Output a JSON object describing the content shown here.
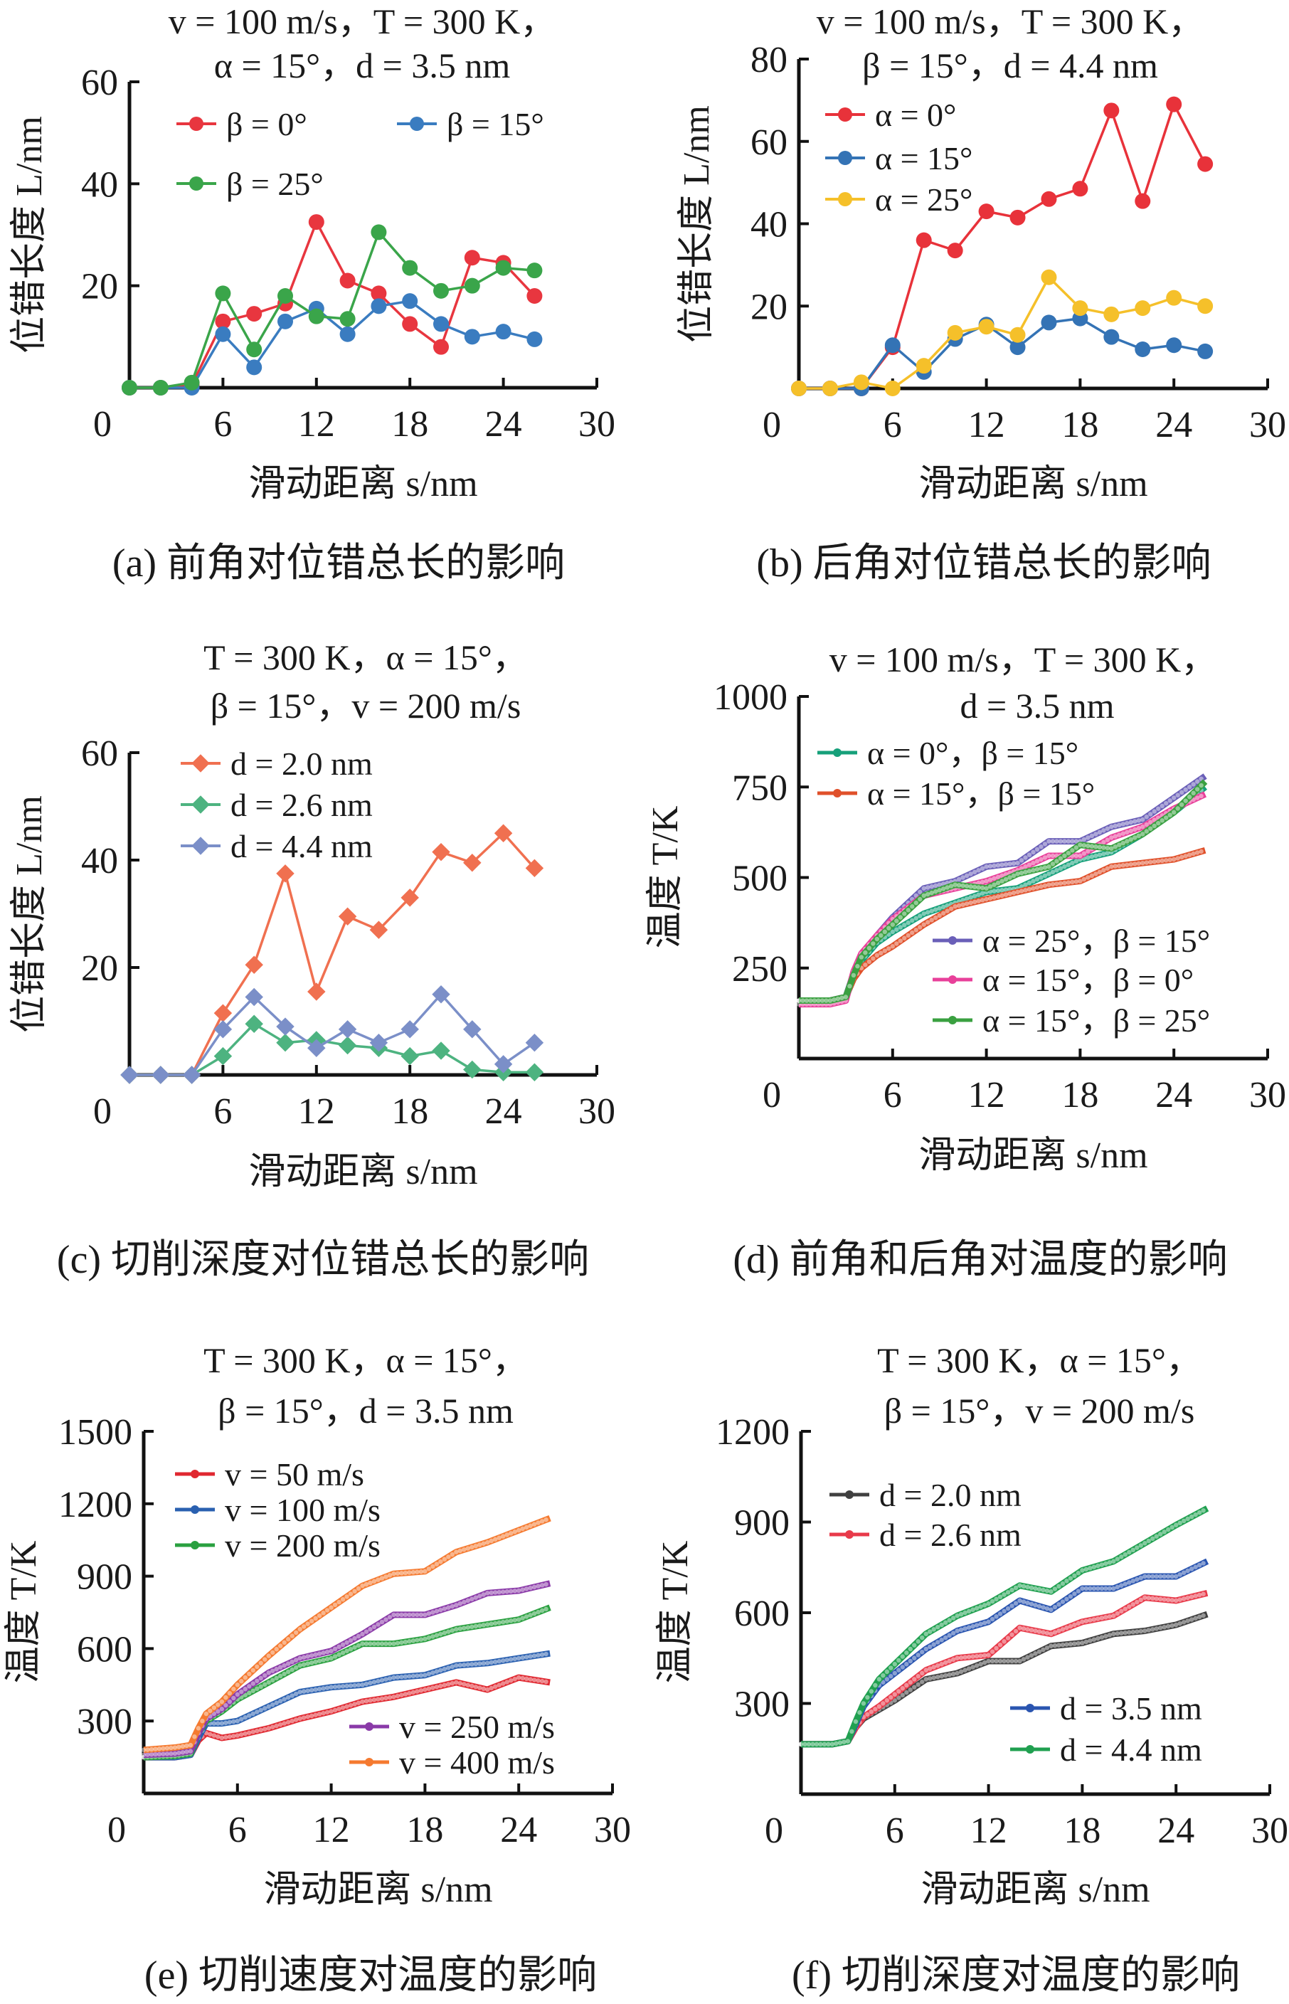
{
  "chart_data": [
    {
      "type": "line",
      "panel": "a",
      "title": [
        "v = 100 m/s，T = 300 K，",
        "α = 15°，d = 3.5 nm"
      ],
      "caption": "(a) 前角对位错总长的影响",
      "xlabel": "滑动距离 s/nm",
      "ylabel": "位错长度 L/nm",
      "xlim": [
        0,
        30
      ],
      "ylim": [
        0,
        60
      ],
      "xticks": [
        0,
        6,
        12,
        18,
        24,
        30
      ],
      "yticks": [
        20,
        40,
        60
      ],
      "series": [
        {
          "name": "β = 0°",
          "color": "#e8363f",
          "marker": "circle",
          "x": [
            0,
            2,
            4,
            6,
            8,
            10,
            12,
            14,
            16,
            18,
            20,
            22,
            24,
            26
          ],
          "y": [
            0,
            0,
            0.5,
            13,
            14.5,
            16.5,
            32.5,
            21,
            18.5,
            12.5,
            8,
            25.5,
            24.5,
            18
          ]
        },
        {
          "name": "β = 15°",
          "color": "#3a7cc0",
          "marker": "circle",
          "x": [
            0,
            2,
            4,
            6,
            8,
            10,
            12,
            14,
            16,
            18,
            20,
            22,
            24,
            26
          ],
          "y": [
            0,
            0,
            0,
            10.5,
            4,
            13,
            15.5,
            10.5,
            16,
            17,
            12.5,
            10,
            11,
            9.5
          ]
        },
        {
          "name": "β = 25°",
          "color": "#3aa54a",
          "marker": "circle",
          "x": [
            0,
            2,
            4,
            6,
            8,
            10,
            12,
            14,
            16,
            18,
            20,
            22,
            24,
            26
          ],
          "y": [
            0,
            0,
            1,
            18.5,
            7.5,
            18,
            14,
            13.5,
            30.5,
            23.5,
            19,
            20,
            23.5,
            23
          ]
        }
      ]
    },
    {
      "type": "line",
      "panel": "b",
      "title": [
        "v = 100 m/s，T = 300 K，",
        "β = 15°，d = 4.4 nm"
      ],
      "caption": "(b) 后角对位错总长的影响",
      "xlabel": "滑动距离 s/nm",
      "ylabel": "位错长度 L/nm",
      "xlim": [
        0,
        30
      ],
      "ylim": [
        0,
        80
      ],
      "xticks": [
        0,
        6,
        12,
        18,
        24,
        30
      ],
      "yticks": [
        20,
        40,
        60,
        80
      ],
      "series": [
        {
          "name": "α = 0°",
          "color": "#e8323a",
          "marker": "circle",
          "x": [
            0,
            2,
            4,
            6,
            8,
            10,
            12,
            14,
            16,
            18,
            20,
            22,
            24,
            26
          ],
          "y": [
            0,
            0,
            0,
            10,
            36,
            33.5,
            43,
            41.5,
            46,
            48.5,
            67.5,
            45.5,
            69,
            54.5
          ]
        },
        {
          "name": "α = 15°",
          "color": "#3473b5",
          "marker": "circle",
          "x": [
            0,
            2,
            4,
            6,
            8,
            10,
            12,
            14,
            16,
            18,
            20,
            22,
            24,
            26
          ],
          "y": [
            0,
            0,
            0,
            10.5,
            4,
            12,
            15.5,
            10,
            16,
            17,
            12.5,
            9.5,
            10.5,
            9
          ]
        },
        {
          "name": "α = 25°",
          "color": "#f5c02a",
          "marker": "circle",
          "x": [
            0,
            2,
            4,
            6,
            8,
            10,
            12,
            14,
            16,
            18,
            20,
            22,
            24,
            26
          ],
          "y": [
            0,
            0,
            1.5,
            0,
            5.5,
            13.5,
            15,
            13,
            27,
            19.5,
            18,
            19.5,
            22,
            20
          ]
        }
      ]
    },
    {
      "type": "line",
      "panel": "c",
      "title": [
        "T = 300 K，α = 15°，",
        "β = 15°，v = 200 m/s"
      ],
      "caption": "(c) 切削深度对位错总长的影响",
      "xlabel": "滑动距离 s/nm",
      "ylabel": "位错长度 L/nm",
      "xlim": [
        0,
        30
      ],
      "ylim": [
        0,
        60
      ],
      "xticks": [
        0,
        6,
        12,
        18,
        24,
        30
      ],
      "yticks": [
        20,
        40,
        60
      ],
      "series": [
        {
          "name": "d = 2.0 nm",
          "color": "#f07050",
          "marker": "diamond",
          "x": [
            0,
            2,
            4,
            6,
            8,
            10,
            12,
            14,
            16,
            18,
            20,
            22,
            24,
            26
          ],
          "y": [
            0,
            0,
            0,
            11.5,
            20.5,
            37.5,
            15.5,
            29.5,
            27,
            33,
            41.5,
            39.5,
            45,
            38.5
          ]
        },
        {
          "name": "d = 2.6 nm",
          "color": "#4db380",
          "marker": "diamond",
          "x": [
            0,
            2,
            4,
            6,
            8,
            10,
            12,
            14,
            16,
            18,
            20,
            22,
            24,
            26
          ],
          "y": [
            0,
            0,
            0,
            3.5,
            9.5,
            6,
            6.5,
            5.5,
            5,
            3.5,
            4.5,
            1,
            0.5,
            0.5
          ]
        },
        {
          "name": "d = 4.4 nm",
          "color": "#7b8fc8",
          "marker": "diamond",
          "x": [
            0,
            2,
            4,
            6,
            8,
            10,
            12,
            14,
            16,
            18,
            20,
            22,
            24,
            26
          ],
          "y": [
            0,
            0,
            0,
            8.5,
            14.5,
            9,
            5,
            8.5,
            6,
            8.5,
            15,
            8.5,
            2,
            6
          ]
        }
      ]
    },
    {
      "type": "line",
      "panel": "d",
      "title": [
        "v = 100 m/s，T = 300 K，",
        "d = 3.5 nm"
      ],
      "caption": "(d) 前角和后角对温度的影响",
      "xlabel": "滑动距离 s/nm",
      "ylabel": "温度 T/K",
      "xlim": [
        0,
        30
      ],
      "ylim": [
        0,
        1000
      ],
      "xticks": [
        0,
        6,
        12,
        18,
        24,
        30
      ],
      "yticks": [
        250,
        500,
        750,
        1000
      ],
      "series": [
        {
          "name": "α = 0°，β = 15°",
          "color": "#16a07a",
          "marker": "dot",
          "x": [
            0,
            2,
            3,
            3.5,
            4,
            5,
            6,
            8,
            10,
            12,
            14,
            16,
            18,
            20,
            22,
            24,
            26
          ],
          "y": [
            160,
            160,
            170,
            220,
            270,
            320,
            350,
            400,
            430,
            460,
            470,
            510,
            550,
            570,
            620,
            680,
            750
          ]
        },
        {
          "name": "α = 15°，β = 15°",
          "color": "#e0502a",
          "marker": "dot",
          "x": [
            0,
            2,
            3,
            3.5,
            4,
            5,
            6,
            8,
            10,
            12,
            14,
            16,
            18,
            20,
            22,
            24,
            26
          ],
          "y": [
            160,
            160,
            170,
            220,
            250,
            285,
            310,
            370,
            420,
            440,
            460,
            480,
            490,
            530,
            540,
            550,
            575
          ]
        },
        {
          "name": "α = 25°，β = 15°",
          "color": "#6a5fb8",
          "marker": "dot",
          "x": [
            0,
            2,
            3,
            3.5,
            4,
            5,
            6,
            8,
            10,
            12,
            14,
            16,
            18,
            20,
            22,
            24,
            26
          ],
          "y": [
            160,
            160,
            170,
            235,
            280,
            340,
            390,
            470,
            490,
            530,
            540,
            600,
            600,
            640,
            660,
            720,
            780
          ]
        },
        {
          "name": "α = 15°，β = 0°",
          "color": "#e8409a",
          "marker": "dot",
          "x": [
            0,
            2,
            3,
            3.5,
            4,
            5,
            6,
            8,
            10,
            12,
            14,
            16,
            18,
            20,
            22,
            24,
            26
          ],
          "y": [
            150,
            150,
            160,
            240,
            290,
            340,
            385,
            450,
            470,
            490,
            520,
            560,
            560,
            610,
            640,
            690,
            730
          ]
        },
        {
          "name": "α = 15°，β = 25°",
          "color": "#3aa040",
          "marker": "dot",
          "x": [
            0,
            2,
            3,
            3.5,
            4,
            5,
            6,
            8,
            10,
            12,
            14,
            16,
            18,
            20,
            22,
            24,
            26
          ],
          "y": [
            160,
            160,
            170,
            230,
            280,
            330,
            370,
            450,
            480,
            470,
            510,
            530,
            590,
            580,
            620,
            680,
            765
          ]
        }
      ]
    },
    {
      "type": "line",
      "panel": "e",
      "title": [
        "T = 300 K，α = 15°，",
        "β = 15°，d = 3.5 nm"
      ],
      "caption": "(e) 切削速度对温度的影响",
      "xlabel": "滑动距离 s/nm",
      "ylabel": "温度 T/K",
      "xlim": [
        0,
        30
      ],
      "ylim": [
        0,
        1500
      ],
      "xticks": [
        0,
        6,
        12,
        18,
        24,
        30
      ],
      "yticks": [
        300,
        600,
        900,
        1200,
        1500
      ],
      "series": [
        {
          "name": "v = 50 m/s",
          "color": "#e02830",
          "marker": "dot",
          "x": [
            0,
            2,
            3,
            3.5,
            4,
            5,
            6,
            8,
            10,
            12,
            14,
            16,
            18,
            20,
            22,
            24,
            26
          ],
          "y": [
            150,
            150,
            160,
            220,
            250,
            230,
            240,
            270,
            310,
            340,
            380,
            400,
            430,
            460,
            430,
            480,
            460
          ]
        },
        {
          "name": "v = 100 m/s",
          "color": "#2a60b0",
          "marker": "dot",
          "x": [
            0,
            2,
            3,
            3.5,
            4,
            5,
            6,
            8,
            10,
            12,
            14,
            16,
            18,
            20,
            22,
            24,
            26
          ],
          "y": [
            150,
            150,
            160,
            230,
            290,
            290,
            300,
            360,
            420,
            440,
            450,
            480,
            490,
            530,
            540,
            560,
            580
          ]
        },
        {
          "name": "v = 200 m/s",
          "color": "#2aa040",
          "marker": "dot",
          "x": [
            0,
            2,
            3,
            3.5,
            4,
            5,
            6,
            8,
            10,
            12,
            14,
            16,
            18,
            20,
            22,
            24,
            26
          ],
          "y": [
            150,
            155,
            165,
            250,
            300,
            340,
            390,
            460,
            530,
            560,
            620,
            620,
            640,
            680,
            700,
            720,
            770
          ]
        },
        {
          "name": "v = 250 m/s",
          "color": "#8a3aa8",
          "marker": "dot",
          "x": [
            0,
            2,
            3,
            3.5,
            4,
            5,
            6,
            8,
            10,
            12,
            14,
            16,
            18,
            20,
            22,
            24,
            26
          ],
          "y": [
            160,
            165,
            175,
            250,
            310,
            350,
            410,
            500,
            560,
            590,
            660,
            740,
            740,
            780,
            830,
            840,
            870
          ]
        },
        {
          "name": "v = 400 m/s",
          "color": "#f57a30",
          "marker": "dot",
          "x": [
            0,
            2,
            3,
            3.5,
            4,
            5,
            6,
            8,
            10,
            12,
            14,
            16,
            18,
            20,
            22,
            24,
            26
          ],
          "y": [
            180,
            190,
            200,
            270,
            330,
            380,
            450,
            570,
            680,
            770,
            860,
            910,
            920,
            1000,
            1040,
            1090,
            1140
          ]
        }
      ]
    },
    {
      "type": "line",
      "panel": "f",
      "title": [
        "T = 300 K，α = 15°，",
        "β = 15°，v = 200 m/s"
      ],
      "caption": "(f) 切削深度对温度的影响",
      "xlabel": "滑动距离 s/nm",
      "ylabel": "温度 T/K",
      "xlim": [
        0,
        30
      ],
      "ylim": [
        0,
        1200
      ],
      "xticks": [
        0,
        6,
        12,
        18,
        24,
        30
      ],
      "yticks": [
        300,
        600,
        900,
        1200
      ],
      "series": [
        {
          "name": "d = 2.0 nm",
          "color": "#404040",
          "marker": "dot",
          "x": [
            0,
            2,
            3,
            3.5,
            4,
            5,
            6,
            8,
            10,
            12,
            14,
            16,
            18,
            20,
            22,
            24,
            26
          ],
          "y": [
            165,
            165,
            175,
            220,
            250,
            280,
            310,
            380,
            400,
            440,
            440,
            490,
            500,
            530,
            540,
            560,
            595
          ]
        },
        {
          "name": "d = 2.6 nm",
          "color": "#e83a4a",
          "marker": "dot",
          "x": [
            0,
            2,
            3,
            3.5,
            4,
            5,
            6,
            8,
            10,
            12,
            14,
            16,
            18,
            20,
            22,
            24,
            26
          ],
          "y": [
            165,
            165,
            175,
            220,
            255,
            290,
            330,
            410,
            450,
            460,
            550,
            530,
            570,
            590,
            650,
            640,
            665
          ]
        },
        {
          "name": "d = 3.5 nm",
          "color": "#2a55b0",
          "marker": "dot",
          "x": [
            0,
            2,
            3,
            3.5,
            4,
            5,
            6,
            8,
            10,
            12,
            14,
            16,
            18,
            20,
            22,
            24,
            26
          ],
          "y": [
            165,
            165,
            175,
            230,
            290,
            360,
            400,
            480,
            540,
            570,
            640,
            610,
            680,
            680,
            720,
            720,
            770
          ]
        },
        {
          "name": "d = 4.4 nm",
          "color": "#20a050",
          "marker": "dot",
          "x": [
            0,
            2,
            3,
            3.5,
            4,
            5,
            6,
            8,
            10,
            12,
            14,
            16,
            18,
            20,
            22,
            24,
            26
          ],
          "y": [
            165,
            165,
            175,
            240,
            300,
            380,
            430,
            530,
            590,
            630,
            690,
            670,
            740,
            770,
            830,
            890,
            945
          ]
        }
      ]
    }
  ]
}
